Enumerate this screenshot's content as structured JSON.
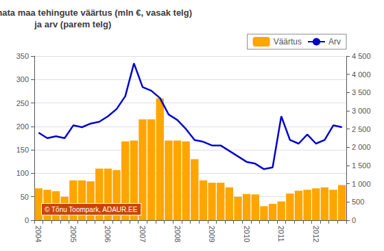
{
  "chart_data": {
    "type": "bar",
    "title": "Hoonestamata maa tehingute väärtus (mln €, vasak telg)\nja arv (parem telg)",
    "categories": [
      "2004",
      null,
      null,
      null,
      "2005",
      null,
      null,
      null,
      "2006",
      null,
      null,
      null,
      "2007",
      null,
      null,
      null,
      "2008",
      null,
      null,
      null,
      "2009",
      null,
      null,
      null,
      "2010",
      null,
      null,
      null,
      "2011",
      null,
      null,
      null,
      "2012",
      null,
      null,
      null
    ],
    "series": [
      {
        "name": "Väärtus",
        "type": "bar",
        "color": "#FFA500",
        "values": [
          68,
          65,
          62,
          50,
          85,
          85,
          83,
          110,
          110,
          107,
          168,
          170,
          215,
          215,
          260,
          170,
          170,
          168,
          130,
          85,
          80,
          80,
          70,
          50,
          56,
          55,
          30,
          35,
          40,
          57,
          63,
          65,
          68,
          70,
          65,
          75
        ]
      },
      {
        "name": "Arv",
        "type": "line",
        "color": "#0000CC",
        "axis": "y2",
        "values": [
          2400,
          2250,
          2300,
          2250,
          2600,
          2550,
          2650,
          2700,
          2850,
          3050,
          3400,
          4300,
          3650,
          3550,
          3350,
          2900,
          2750,
          2500,
          2200,
          2150,
          2050,
          2050,
          1900,
          1750,
          1600,
          1550,
          1400,
          1450,
          2850,
          2200,
          2100,
          2350,
          2100,
          2200,
          2600,
          2550
        ]
      }
    ],
    "ylim": [
      0,
      350
    ],
    "yticks": [
      0,
      50,
      100,
      150,
      200,
      250,
      300,
      350
    ],
    "y2lim": [
      0,
      4500
    ],
    "y2ticks": [
      0,
      500,
      {
        "value": 1000,
        "label": "1 000"
      },
      {
        "value": 1500,
        "label": "1 500"
      },
      {
        "value": 2000,
        "label": "2 000"
      },
      {
        "value": 2500,
        "label": "2 500"
      },
      {
        "value": 3000,
        "label": "3 000"
      },
      {
        "value": 3500,
        "label": "3 500"
      },
      {
        "value": 4000,
        "label": "4 000"
      },
      {
        "value": 4500,
        "label": "4 500"
      }
    ],
    "grid": true,
    "legend": "upper right",
    "annotations": [
      "© Tõnu Toompark, ADAUR.EE"
    ]
  }
}
